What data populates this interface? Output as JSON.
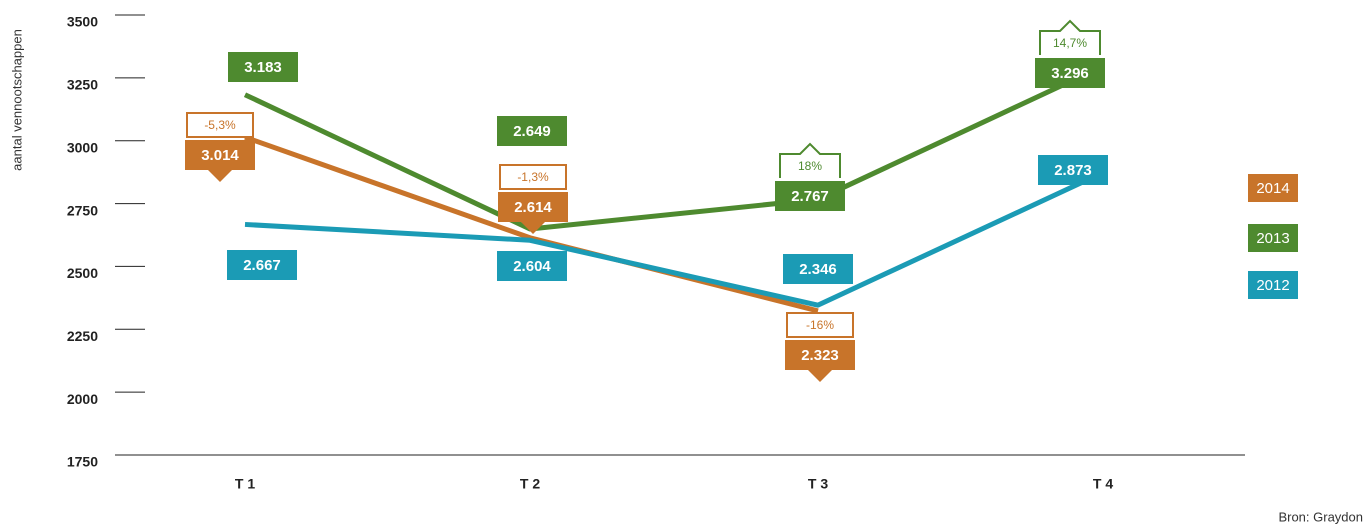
{
  "chart_data": {
    "type": "line",
    "y_label": "aantal vennootschappen",
    "source": "Bron: Graydon",
    "categories": [
      "T 1",
      "T 2",
      "T 3",
      "T 4"
    ],
    "ylim": [
      1750,
      3500
    ],
    "yticks": [
      1750,
      2000,
      2250,
      2500,
      2750,
      3000,
      3250,
      3500
    ],
    "series": [
      {
        "name": "2014",
        "color": "#c8742a",
        "values": [
          3014,
          2614,
          2323,
          null
        ],
        "value_labels": [
          "3.014",
          "2.614",
          "2.323",
          null
        ],
        "changes": [
          "-5,3%",
          "-1,3%",
          "-16%",
          null
        ]
      },
      {
        "name": "2013",
        "color": "#4e8a2f",
        "values": [
          3183,
          2649,
          2767,
          3296
        ],
        "value_labels": [
          "3.183",
          "2.649",
          "2.767",
          "3.296"
        ],
        "changes": [
          null,
          null,
          "18%",
          "14,7%"
        ]
      },
      {
        "name": "2012",
        "color": "#1b9bb5",
        "values": [
          2667,
          2604,
          2346,
          2873
        ],
        "value_labels": [
          "2.667",
          "2.604",
          "2.346",
          "2.873"
        ],
        "changes": [
          null,
          null,
          null,
          null
        ]
      }
    ]
  }
}
